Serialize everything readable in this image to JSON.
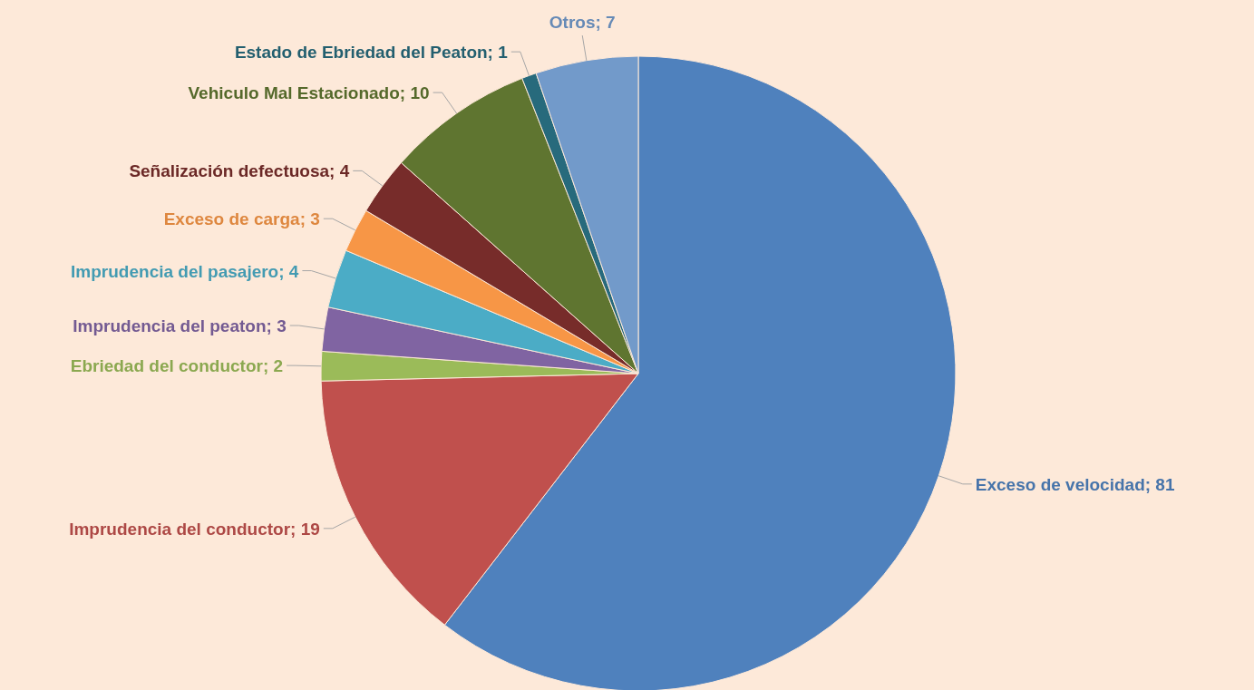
{
  "chart_data": {
    "type": "pie",
    "categories": [
      "Exceso de velocidad",
      "Imprudencia del conductor",
      "Ebriedad del conductor",
      "Imprudencia del peaton",
      "Imprudencia del pasajero",
      "Exceso de carga",
      "Señalización defectuosa",
      "Vehiculo Mal Estacionado",
      "Estado de Ebriedad del Peaton",
      "Otros"
    ],
    "values": [
      81,
      19,
      2,
      3,
      4,
      3,
      4,
      10,
      1,
      7
    ],
    "value_labels": [
      "; 81",
      "; 19",
      "; 2",
      "; 3",
      "; 4",
      "; 3",
      "; 4",
      "; 10",
      "; 1",
      "; 7"
    ],
    "colors": [
      "#4f81bd",
      "#c0504d",
      "#9bbb59",
      "#8064a2",
      "#4bacc6",
      "#f79646",
      "#772c2a",
      "#5f7530",
      "#276a7c",
      "#729aca"
    ]
  }
}
